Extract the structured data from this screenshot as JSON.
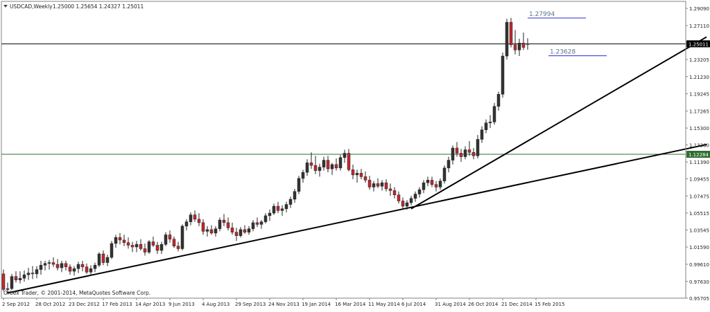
{
  "header": {
    "symbol_label": "USDCAD,Weekly",
    "ohlc_label": "1.25000 1.25654 1.24327 1.25011",
    "menu_icon": "triangle-down-icon"
  },
  "footer": {
    "copyright": "Orbex Trader, © 2001-2014, MetaQuotes Software Corp."
  },
  "colors": {
    "bull": "#333333",
    "bear": "#c0282d",
    "resistance_line": "#000000",
    "support_line": "#2e6b2e",
    "annotation_line": "#2a2ad4",
    "annotation_text": "#5d7389"
  },
  "chart_data": {
    "type": "candlestick",
    "symbol": "USDCAD",
    "timeframe": "Weekly",
    "ylim": [
      0.957,
      1.299
    ],
    "y_ticks": [
      "1.29090",
      "1.27110",
      "1.25150",
      "1.23205",
      "1.21230",
      "1.19245",
      "1.17265",
      "1.15300",
      "1.13360",
      "1.11390",
      "1.09455",
      "1.07475",
      "1.05515",
      "1.03545",
      "1.01590",
      "0.99610",
      "0.97630",
      "0.95705"
    ],
    "x_ticks": [
      "2 Sep 2012",
      "28 Oct 2012",
      "23 Dec 2012",
      "17 Feb 2013",
      "14 Apr 2013",
      "9 Jun 2013",
      "4 Aug 2013",
      "29 Sep 2013",
      "24 Nov 2013",
      "19 Jan 2014",
      "16 Mar 2014",
      "11 May 2014",
      "6 Jul 2014",
      "31 Aug 2014",
      "26 Oct 2014",
      "21 Dec 2014",
      "15 Feb 2015"
    ],
    "current_price_label": "1.25011",
    "horizontal_lines": [
      {
        "value": 1.2501,
        "label": "1.25011",
        "style": "current"
      },
      {
        "value": 1.1228,
        "label": "1.12284",
        "style": "support"
      }
    ],
    "annotations": [
      {
        "text": "1.27994",
        "price": 1.2799,
        "from_index": 126,
        "to_index": 140
      },
      {
        "text": "1.23628",
        "price": 1.2363,
        "from_index": 131,
        "to_index": 145
      }
    ],
    "trendlines": [
      {
        "from": [
          1,
          0.963
        ],
        "to": [
          169,
          1.134
        ]
      },
      {
        "from": [
          98,
          1.06
        ],
        "to": [
          169,
          1.258
        ]
      }
    ],
    "candles": [
      [
        0.985,
        0.99,
        0.965,
        0.967
      ],
      [
        0.967,
        0.975,
        0.962,
        0.968
      ],
      [
        0.968,
        0.985,
        0.966,
        0.982
      ],
      [
        0.982,
        0.988,
        0.975,
        0.978
      ],
      [
        0.978,
        0.988,
        0.974,
        0.98
      ],
      [
        0.98,
        0.989,
        0.976,
        0.984
      ],
      [
        0.984,
        0.992,
        0.978,
        0.986
      ],
      [
        0.986,
        0.994,
        0.979,
        0.985
      ],
      [
        0.985,
        0.994,
        0.98,
        0.99
      ],
      [
        0.99,
        1.0,
        0.984,
        0.995
      ],
      [
        0.995,
        1.0,
        0.989,
        0.997
      ],
      [
        0.997,
        1.001,
        0.99,
        0.998
      ],
      [
        0.998,
        1.004,
        0.993,
        0.996
      ],
      [
        0.996,
        1.002,
        0.989,
        0.992
      ],
      [
        0.992,
        1.0,
        0.987,
        0.997
      ],
      [
        0.997,
        1.0,
        0.989,
        0.993
      ],
      [
        0.993,
        0.996,
        0.984,
        0.988
      ],
      [
        0.988,
        0.994,
        0.983,
        0.991
      ],
      [
        0.991,
        0.999,
        0.986,
        0.996
      ],
      [
        0.996,
        1.0,
        0.988,
        0.993
      ],
      [
        0.993,
        0.997,
        0.985,
        0.987
      ],
      [
        0.987,
        0.995,
        0.983,
        0.991
      ],
      [
        0.991,
        0.998,
        0.987,
        0.995
      ],
      [
        0.995,
        1.01,
        0.993,
        1.008
      ],
      [
        1.008,
        1.012,
        0.995,
        0.998
      ],
      [
        0.998,
        1.007,
        0.994,
        1.004
      ],
      [
        1.004,
        1.023,
        1.002,
        1.02
      ],
      [
        1.02,
        1.03,
        1.015,
        1.027
      ],
      [
        1.027,
        1.032,
        1.019,
        1.024
      ],
      [
        1.024,
        1.03,
        1.017,
        1.021
      ],
      [
        1.021,
        1.027,
        1.014,
        1.018
      ],
      [
        1.018,
        1.022,
        1.01,
        1.016
      ],
      [
        1.016,
        1.023,
        1.01,
        1.019
      ],
      [
        1.019,
        1.025,
        1.012,
        1.014
      ],
      [
        1.014,
        1.02,
        1.006,
        1.01
      ],
      [
        1.01,
        1.024,
        1.008,
        1.022
      ],
      [
        1.022,
        1.028,
        1.016,
        1.018
      ],
      [
        1.018,
        1.022,
        1.008,
        1.012
      ],
      [
        1.012,
        1.022,
        1.008,
        1.019
      ],
      [
        1.019,
        1.033,
        1.017,
        1.03
      ],
      [
        1.03,
        1.035,
        1.021,
        1.025
      ],
      [
        1.025,
        1.028,
        1.015,
        1.017
      ],
      [
        1.017,
        1.022,
        1.011,
        1.014
      ],
      [
        1.014,
        1.042,
        1.012,
        1.04
      ],
      [
        1.04,
        1.048,
        1.035,
        1.045
      ],
      [
        1.045,
        1.056,
        1.041,
        1.053
      ],
      [
        1.053,
        1.058,
        1.045,
        1.048
      ],
      [
        1.048,
        1.055,
        1.04,
        1.044
      ],
      [
        1.044,
        1.048,
        1.03,
        1.034
      ],
      [
        1.034,
        1.04,
        1.028,
        1.036
      ],
      [
        1.036,
        1.041,
        1.03,
        1.032
      ],
      [
        1.032,
        1.04,
        1.028,
        1.037
      ],
      [
        1.037,
        1.05,
        1.034,
        1.047
      ],
      [
        1.047,
        1.054,
        1.04,
        1.044
      ],
      [
        1.044,
        1.05,
        1.035,
        1.038
      ],
      [
        1.038,
        1.044,
        1.03,
        1.033
      ],
      [
        1.033,
        1.038,
        1.023,
        1.029
      ],
      [
        1.029,
        1.039,
        1.027,
        1.036
      ],
      [
        1.036,
        1.041,
        1.031,
        1.033
      ],
      [
        1.033,
        1.04,
        1.03,
        1.037
      ],
      [
        1.037,
        1.047,
        1.034,
        1.044
      ],
      [
        1.044,
        1.05,
        1.039,
        1.042
      ],
      [
        1.042,
        1.047,
        1.037,
        1.045
      ],
      [
        1.045,
        1.055,
        1.043,
        1.052
      ],
      [
        1.052,
        1.059,
        1.046,
        1.055
      ],
      [
        1.055,
        1.066,
        1.053,
        1.063
      ],
      [
        1.063,
        1.068,
        1.055,
        1.058
      ],
      [
        1.058,
        1.064,
        1.052,
        1.06
      ],
      [
        1.06,
        1.068,
        1.056,
        1.065
      ],
      [
        1.065,
        1.074,
        1.061,
        1.071
      ],
      [
        1.071,
        1.083,
        1.067,
        1.08
      ],
      [
        1.08,
        1.098,
        1.077,
        1.095
      ],
      [
        1.095,
        1.105,
        1.09,
        1.102
      ],
      [
        1.102,
        1.117,
        1.098,
        1.113
      ],
      [
        1.113,
        1.125,
        1.106,
        1.11
      ],
      [
        1.11,
        1.121,
        1.1,
        1.104
      ],
      [
        1.104,
        1.112,
        1.097,
        1.108
      ],
      [
        1.108,
        1.12,
        1.104,
        1.116
      ],
      [
        1.116,
        1.121,
        1.102,
        1.106
      ],
      [
        1.106,
        1.113,
        1.099,
        1.111
      ],
      [
        1.111,
        1.118,
        1.104,
        1.107
      ],
      [
        1.107,
        1.122,
        1.104,
        1.119
      ],
      [
        1.119,
        1.128,
        1.113,
        1.124
      ],
      [
        1.124,
        1.129,
        1.103,
        1.105
      ],
      [
        1.105,
        1.111,
        1.094,
        1.099
      ],
      [
        1.099,
        1.105,
        1.09,
        1.101
      ],
      [
        1.101,
        1.106,
        1.094,
        1.097
      ],
      [
        1.097,
        1.103,
        1.09,
        1.093
      ],
      [
        1.093,
        1.098,
        1.082,
        1.085
      ],
      [
        1.085,
        1.092,
        1.08,
        1.089
      ],
      [
        1.089,
        1.095,
        1.084,
        1.086
      ],
      [
        1.086,
        1.093,
        1.081,
        1.09
      ],
      [
        1.09,
        1.094,
        1.08,
        1.083
      ],
      [
        1.083,
        1.089,
        1.075,
        1.081
      ],
      [
        1.081,
        1.085,
        1.072,
        1.076
      ],
      [
        1.076,
        1.08,
        1.066,
        1.069
      ],
      [
        1.069,
        1.073,
        1.06,
        1.063
      ],
      [
        1.063,
        1.07,
        1.059,
        1.067
      ],
      [
        1.067,
        1.075,
        1.064,
        1.072
      ],
      [
        1.072,
        1.08,
        1.068,
        1.077
      ],
      [
        1.077,
        1.085,
        1.073,
        1.082
      ],
      [
        1.082,
        1.093,
        1.078,
        1.09
      ],
      [
        1.09,
        1.097,
        1.086,
        1.093
      ],
      [
        1.093,
        1.097,
        1.085,
        1.088
      ],
      [
        1.088,
        1.092,
        1.08,
        1.085
      ],
      [
        1.085,
        1.095,
        1.082,
        1.092
      ],
      [
        1.092,
        1.11,
        1.089,
        1.107
      ],
      [
        1.107,
        1.12,
        1.102,
        1.116
      ],
      [
        1.116,
        1.133,
        1.111,
        1.13
      ],
      [
        1.13,
        1.137,
        1.12,
        1.124
      ],
      [
        1.124,
        1.129,
        1.114,
        1.12
      ],
      [
        1.12,
        1.132,
        1.117,
        1.128
      ],
      [
        1.128,
        1.138,
        1.121,
        1.125
      ],
      [
        1.125,
        1.13,
        1.117,
        1.121
      ],
      [
        1.121,
        1.145,
        1.118,
        1.14
      ],
      [
        1.14,
        1.155,
        1.136,
        1.151
      ],
      [
        1.151,
        1.163,
        1.147,
        1.159
      ],
      [
        1.159,
        1.168,
        1.153,
        1.16
      ],
      [
        1.16,
        1.182,
        1.157,
        1.178
      ],
      [
        1.178,
        1.195,
        1.173,
        1.192
      ],
      [
        1.192,
        1.24,
        1.188,
        1.236
      ],
      [
        1.236,
        1.279,
        1.232,
        1.275
      ],
      [
        1.275,
        1.28,
        1.246,
        1.249
      ],
      [
        1.249,
        1.266,
        1.238,
        1.243
      ],
      [
        1.243,
        1.256,
        1.236,
        1.251
      ],
      [
        1.251,
        1.263,
        1.243,
        1.246
      ],
      [
        1.25,
        1.2565,
        1.2433,
        1.2501
      ]
    ]
  }
}
